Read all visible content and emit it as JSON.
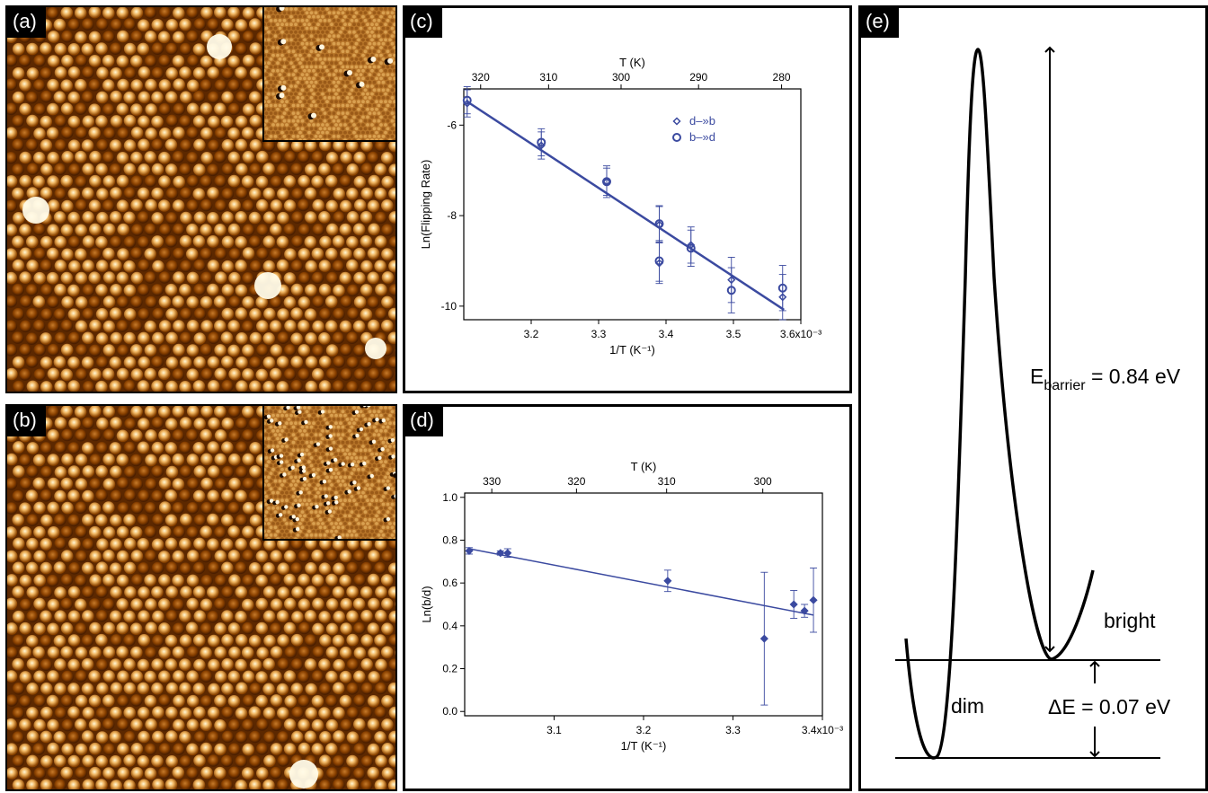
{
  "panels": {
    "a": {
      "label": "(a)"
    },
    "b": {
      "label": "(b)"
    },
    "c": {
      "label": "(c)"
    },
    "d": {
      "label": "(d)"
    },
    "e": {
      "label": "(e)"
    }
  },
  "chart_data": [
    {
      "panel": "c",
      "type": "scatter",
      "title": "",
      "xlabel": "1/T (K⁻¹)",
      "ylabel": "Ln(Flipping Rate)",
      "x2label": "T (K)",
      "xlim": [
        3.1,
        3.6
      ],
      "ylim": [
        -10.3,
        -5.2
      ],
      "x_ticks": [
        "3.2",
        "3.3",
        "3.4",
        "3.5",
        "3.6x10⁻³"
      ],
      "x_tick_values": [
        3.2,
        3.3,
        3.4,
        3.5,
        3.6
      ],
      "y_ticks": [
        "-6",
        "-8",
        "-10"
      ],
      "y_tick_values": [
        -6,
        -8,
        -10
      ],
      "x2_ticks": [
        "320",
        "310",
        "300",
        "290",
        "280"
      ],
      "x2_tick_values": [
        320,
        310,
        300,
        290,
        280
      ],
      "legend_position": "top-right",
      "series": [
        {
          "name": "d–»b",
          "marker": "diamond",
          "x": [
            3.105,
            3.215,
            3.312,
            3.39,
            3.39,
            3.437,
            3.497,
            3.573
          ],
          "y": [
            -5.52,
            -6.45,
            -7.25,
            -8.2,
            -9.05,
            -8.65,
            -9.42,
            -9.8
          ],
          "err": [
            0.3,
            0.3,
            0.3,
            0.4,
            0.45,
            0.4,
            0.5,
            0.5
          ]
        },
        {
          "name": "b–»d",
          "marker": "circle",
          "x": [
            3.105,
            3.215,
            3.312,
            3.39,
            3.39,
            3.437,
            3.497,
            3.573
          ],
          "y": [
            -5.45,
            -6.38,
            -7.25,
            -8.18,
            -9.0,
            -8.72,
            -9.65,
            -9.6
          ],
          "err": [
            0.3,
            0.3,
            0.35,
            0.4,
            0.45,
            0.4,
            0.5,
            0.5
          ]
        }
      ],
      "fit": {
        "x": [
          3.105,
          3.575
        ],
        "y": [
          -5.48,
          -10.08
        ]
      },
      "color": "#3b4aa0"
    },
    {
      "panel": "d",
      "type": "scatter",
      "title": "",
      "xlabel": "1/T (K⁻¹)",
      "ylabel": "Ln(b/d)",
      "x2label": "T (K)",
      "xlim": [
        3.0,
        3.4
      ],
      "ylim": [
        -0.02,
        1.02
      ],
      "x_ticks": [
        "3.1",
        "3.2",
        "3.3",
        "3.4x10⁻³"
      ],
      "x_tick_values": [
        3.1,
        3.2,
        3.3,
        3.4
      ],
      "y_ticks": [
        "0.0",
        "0.2",
        "0.4",
        "0.6",
        "0.8",
        "1.0"
      ],
      "y_tick_values": [
        0.0,
        0.2,
        0.4,
        0.6,
        0.8,
        1.0
      ],
      "x2_ticks": [
        "330",
        "320",
        "310",
        "300"
      ],
      "x2_tick_values": [
        330,
        320,
        310,
        300
      ],
      "series": [
        {
          "name": "",
          "marker": "diamond",
          "x": [
            3.005,
            3.04,
            3.048,
            3.227,
            3.335,
            3.368,
            3.38,
            3.39
          ],
          "y": [
            0.75,
            0.74,
            0.74,
            0.61,
            0.34,
            0.5,
            0.47,
            0.52
          ],
          "err": [
            0.015,
            0.01,
            0.02,
            0.05,
            0.31,
            0.065,
            0.03,
            0.15
          ]
        }
      ],
      "fit": {
        "x": [
          3.005,
          3.39
        ],
        "y": [
          0.76,
          0.45
        ]
      },
      "color": "#3b4aa0"
    }
  ],
  "diagram_e": {
    "barrier_label_main": "E",
    "barrier_label_sub": "barrier",
    "barrier_label_value": " = 0.84 eV",
    "bright_label": "bright",
    "dim_label": "dim",
    "delta_label": "ΔE = 0.07 eV"
  }
}
